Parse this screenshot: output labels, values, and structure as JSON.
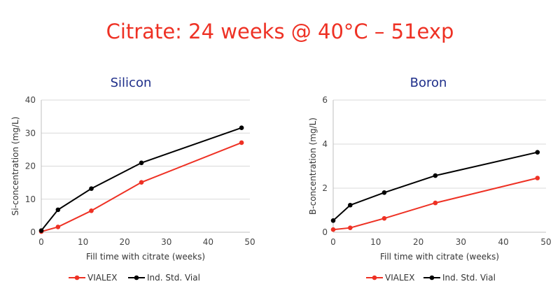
{
  "page": {
    "title": "Citrate: 24 weeks @ 40°C – 51exp",
    "title_color": "#ee3124"
  },
  "chart_data": [
    {
      "type": "line",
      "title": "Silicon",
      "xlabel": "Fill time with citrate (weeks)",
      "ylabel": "Si-concentration (mg/L)",
      "xlim": [
        0,
        50
      ],
      "ylim": [
        0,
        40
      ],
      "xticks": [
        0,
        10,
        20,
        30,
        40,
        50
      ],
      "yticks": [
        0,
        10,
        20,
        30,
        40
      ],
      "grid": "horizontal",
      "legend_position": "bottom",
      "x": [
        0,
        4,
        12,
        24,
        48
      ],
      "series": [
        {
          "name": "VIALEX",
          "color": "#ee3124",
          "values": [
            0.2,
            1.6,
            6.5,
            15.1,
            27.1
          ]
        },
        {
          "name": "Ind. Std. Vial",
          "color": "#000000",
          "values": [
            0.5,
            6.8,
            13.2,
            21.0,
            31.6
          ]
        }
      ]
    },
    {
      "type": "line",
      "title": "Boron",
      "xlabel": "Fill time with citrate (weeks)",
      "ylabel": "B-concentration (mg/L)",
      "xlim": [
        0,
        50
      ],
      "ylim": [
        0,
        6
      ],
      "xticks": [
        0,
        10,
        20,
        30,
        40,
        50
      ],
      "yticks": [
        0,
        2,
        4,
        6
      ],
      "grid": "horizontal",
      "legend_position": "bottom",
      "x": [
        0,
        4,
        12,
        24,
        48
      ],
      "series": [
        {
          "name": "VIALEX",
          "color": "#ee3124",
          "values": [
            0.12,
            0.2,
            0.63,
            1.33,
            2.46
          ]
        },
        {
          "name": "Ind. Std. Vial",
          "color": "#000000",
          "values": [
            0.53,
            1.23,
            1.8,
            2.57,
            3.63
          ]
        }
      ]
    }
  ]
}
